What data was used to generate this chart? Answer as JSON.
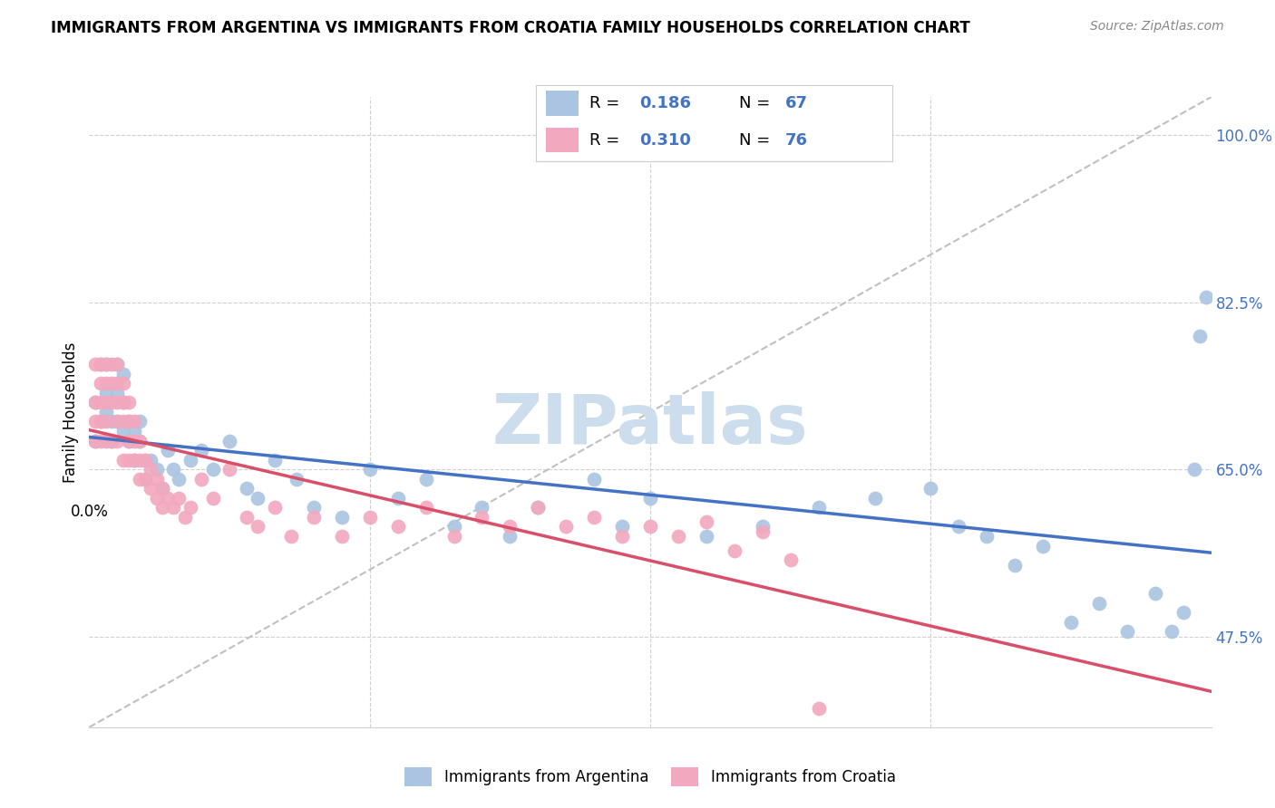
{
  "title": "IMMIGRANTS FROM ARGENTINA VS IMMIGRANTS FROM CROATIA FAMILY HOUSEHOLDS CORRELATION CHART",
  "source": "Source: ZipAtlas.com",
  "ylabel": "Family Households",
  "yticks": [
    0.475,
    0.65,
    0.825,
    1.0
  ],
  "ytick_labels": [
    "47.5%",
    "65.0%",
    "82.5%",
    "100.0%"
  ],
  "xmin": 0.0,
  "xmax": 0.2,
  "ymin": 0.38,
  "ymax": 1.04,
  "R_argentina": 0.186,
  "N_argentina": 67,
  "R_croatia": 0.31,
  "N_croatia": 76,
  "color_argentina": "#aac4e2",
  "color_croatia": "#f2a8be",
  "trendline_argentina": "#4472c4",
  "trendline_croatia": "#d94f6a",
  "trendline_dashed": "#c0c0c0",
  "legend_label_argentina": "Immigrants from Argentina",
  "legend_label_croatia": "Immigrants from Croatia",
  "watermark": "ZIPatlas",
  "watermark_color": "#ccdded",
  "argentina_x": [
    0.001,
    0.001,
    0.002,
    0.002,
    0.003,
    0.003,
    0.003,
    0.004,
    0.004,
    0.005,
    0.005,
    0.005,
    0.006,
    0.006,
    0.006,
    0.007,
    0.007,
    0.008,
    0.008,
    0.009,
    0.009,
    0.01,
    0.01,
    0.011,
    0.012,
    0.013,
    0.014,
    0.015,
    0.016,
    0.018,
    0.02,
    0.022,
    0.025,
    0.028,
    0.03,
    0.033,
    0.037,
    0.04,
    0.045,
    0.05,
    0.055,
    0.06,
    0.065,
    0.07,
    0.075,
    0.08,
    0.09,
    0.095,
    0.1,
    0.11,
    0.12,
    0.13,
    0.14,
    0.15,
    0.155,
    0.16,
    0.165,
    0.17,
    0.175,
    0.18,
    0.185,
    0.19,
    0.193,
    0.195,
    0.197,
    0.198,
    0.199
  ],
  "argentina_y": [
    0.72,
    0.68,
    0.76,
    0.7,
    0.73,
    0.71,
    0.76,
    0.7,
    0.68,
    0.7,
    0.73,
    0.76,
    0.69,
    0.72,
    0.75,
    0.68,
    0.7,
    0.66,
    0.69,
    0.68,
    0.7,
    0.66,
    0.64,
    0.66,
    0.65,
    0.63,
    0.67,
    0.65,
    0.64,
    0.66,
    0.67,
    0.65,
    0.68,
    0.63,
    0.62,
    0.66,
    0.64,
    0.61,
    0.6,
    0.65,
    0.62,
    0.64,
    0.59,
    0.61,
    0.58,
    0.61,
    0.64,
    0.59,
    0.62,
    0.58,
    0.59,
    0.61,
    0.62,
    0.63,
    0.59,
    0.58,
    0.55,
    0.57,
    0.49,
    0.51,
    0.48,
    0.52,
    0.48,
    0.5,
    0.65,
    0.79,
    0.83
  ],
  "croatia_x": [
    0.001,
    0.001,
    0.001,
    0.001,
    0.002,
    0.002,
    0.002,
    0.002,
    0.002,
    0.003,
    0.003,
    0.003,
    0.003,
    0.003,
    0.004,
    0.004,
    0.004,
    0.004,
    0.005,
    0.005,
    0.005,
    0.005,
    0.005,
    0.006,
    0.006,
    0.006,
    0.006,
    0.007,
    0.007,
    0.007,
    0.007,
    0.008,
    0.008,
    0.008,
    0.009,
    0.009,
    0.009,
    0.01,
    0.01,
    0.011,
    0.011,
    0.012,
    0.012,
    0.013,
    0.013,
    0.014,
    0.015,
    0.016,
    0.017,
    0.018,
    0.02,
    0.022,
    0.025,
    0.028,
    0.03,
    0.033,
    0.036,
    0.04,
    0.045,
    0.05,
    0.055,
    0.06,
    0.065,
    0.07,
    0.075,
    0.08,
    0.085,
    0.09,
    0.095,
    0.1,
    0.105,
    0.11,
    0.115,
    0.12,
    0.125,
    0.13
  ],
  "croatia_y": [
    0.76,
    0.72,
    0.7,
    0.68,
    0.76,
    0.74,
    0.72,
    0.7,
    0.68,
    0.76,
    0.74,
    0.72,
    0.7,
    0.68,
    0.76,
    0.74,
    0.72,
    0.68,
    0.76,
    0.74,
    0.72,
    0.7,
    0.68,
    0.74,
    0.72,
    0.7,
    0.66,
    0.72,
    0.7,
    0.68,
    0.66,
    0.7,
    0.68,
    0.66,
    0.68,
    0.66,
    0.64,
    0.66,
    0.64,
    0.65,
    0.63,
    0.64,
    0.62,
    0.63,
    0.61,
    0.62,
    0.61,
    0.62,
    0.6,
    0.61,
    0.64,
    0.62,
    0.65,
    0.6,
    0.59,
    0.61,
    0.58,
    0.6,
    0.58,
    0.6,
    0.59,
    0.61,
    0.58,
    0.6,
    0.59,
    0.61,
    0.59,
    0.6,
    0.58,
    0.59,
    0.58,
    0.595,
    0.565,
    0.585,
    0.555,
    0.4
  ]
}
